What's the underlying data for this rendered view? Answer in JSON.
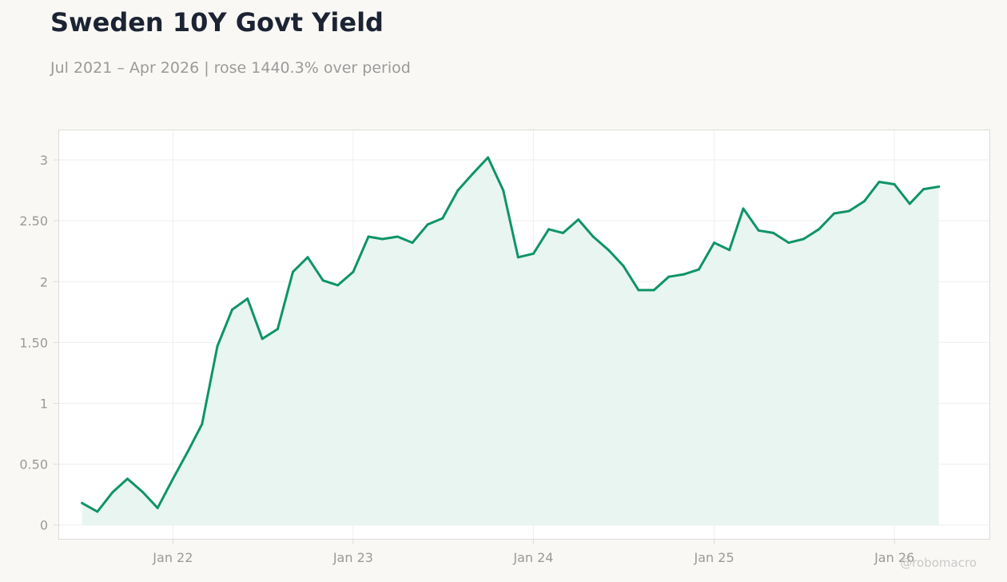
{
  "header": {
    "title": "Sweden 10Y Govt Yield",
    "subtitle": "Jul 2021 – Apr 2026 | rose 1440.3% over period",
    "watermark": "@robomacro"
  },
  "colors": {
    "line": "#0e9468",
    "area": "#e9f5f0",
    "frame": "#dcdcd8",
    "grid": "#efefef",
    "plot_bg": "#ffffff"
  },
  "chart_data": {
    "type": "area",
    "title": "Sweden 10Y Govt Yield",
    "subtitle": "Jul 2021 – Apr 2026 | rose 1440.3% over period",
    "xlabel": "",
    "ylabel": "",
    "xlim": [
      "2021-05-14",
      "2026-07-14"
    ],
    "ylim": [
      -0.12,
      3.25
    ],
    "grid": true,
    "legend": "none",
    "x_ticks": [
      {
        "date": "2022-01-01",
        "label": "Jan 22"
      },
      {
        "date": "2023-01-01",
        "label": "Jan 23"
      },
      {
        "date": "2024-01-01",
        "label": "Jan 24"
      },
      {
        "date": "2025-01-01",
        "label": "Jan 25"
      },
      {
        "date": "2026-01-01",
        "label": "Jan 26"
      }
    ],
    "y_ticks": [
      {
        "value": 0,
        "label": "0"
      },
      {
        "value": 0.5,
        "label": "0.50"
      },
      {
        "value": 1,
        "label": "1"
      },
      {
        "value": 1.5,
        "label": "1.50"
      },
      {
        "value": 2,
        "label": "2"
      },
      {
        "value": 2.5,
        "label": "2.50"
      },
      {
        "value": 3,
        "label": "3"
      }
    ],
    "series": [
      {
        "x": [
          "2021-07-01",
          "2021-08-01",
          "2021-09-01",
          "2021-10-01",
          "2021-11-01",
          "2021-12-01",
          "2022-01-01",
          "2022-02-01",
          "2022-03-01",
          "2022-04-01",
          "2022-05-01",
          "2022-06-01",
          "2022-07-01",
          "2022-08-01",
          "2022-09-01",
          "2022-10-01",
          "2022-11-01",
          "2022-12-01",
          "2023-01-01",
          "2023-02-01",
          "2023-03-01",
          "2023-04-01",
          "2023-05-01",
          "2023-06-01",
          "2023-07-01",
          "2023-08-01",
          "2023-09-01",
          "2023-10-01",
          "2023-11-01",
          "2023-12-01",
          "2024-01-01",
          "2024-02-01",
          "2024-03-01",
          "2024-04-01",
          "2024-05-01",
          "2024-06-01",
          "2024-07-01",
          "2024-08-01",
          "2024-09-01",
          "2024-10-01",
          "2024-11-01",
          "2024-12-01",
          "2025-01-01",
          "2025-02-01",
          "2025-03-01",
          "2025-04-01",
          "2025-05-01",
          "2025-06-01",
          "2025-07-01",
          "2025-08-01",
          "2025-09-01",
          "2025-10-01",
          "2025-11-01",
          "2025-12-01",
          "2026-01-01",
          "2026-02-01",
          "2026-03-01",
          "2026-04-01"
        ],
        "y": [
          0.18,
          0.11,
          0.27,
          0.38,
          0.27,
          0.14,
          0.38,
          0.61,
          0.83,
          1.47,
          1.77,
          1.86,
          1.53,
          1.61,
          2.08,
          2.2,
          2.01,
          1.97,
          2.08,
          2.37,
          2.35,
          2.37,
          2.32,
          2.47,
          2.52,
          2.75,
          2.89,
          3.02,
          2.75,
          2.2,
          2.23,
          2.43,
          2.4,
          2.51,
          2.37,
          2.26,
          2.13,
          1.93,
          1.93,
          2.04,
          2.06,
          2.1,
          2.32,
          2.26,
          2.6,
          2.42,
          2.4,
          2.32,
          2.35,
          2.43,
          2.56,
          2.58,
          2.66,
          2.82,
          2.8,
          2.64,
          2.76,
          2.78
        ]
      }
    ]
  }
}
